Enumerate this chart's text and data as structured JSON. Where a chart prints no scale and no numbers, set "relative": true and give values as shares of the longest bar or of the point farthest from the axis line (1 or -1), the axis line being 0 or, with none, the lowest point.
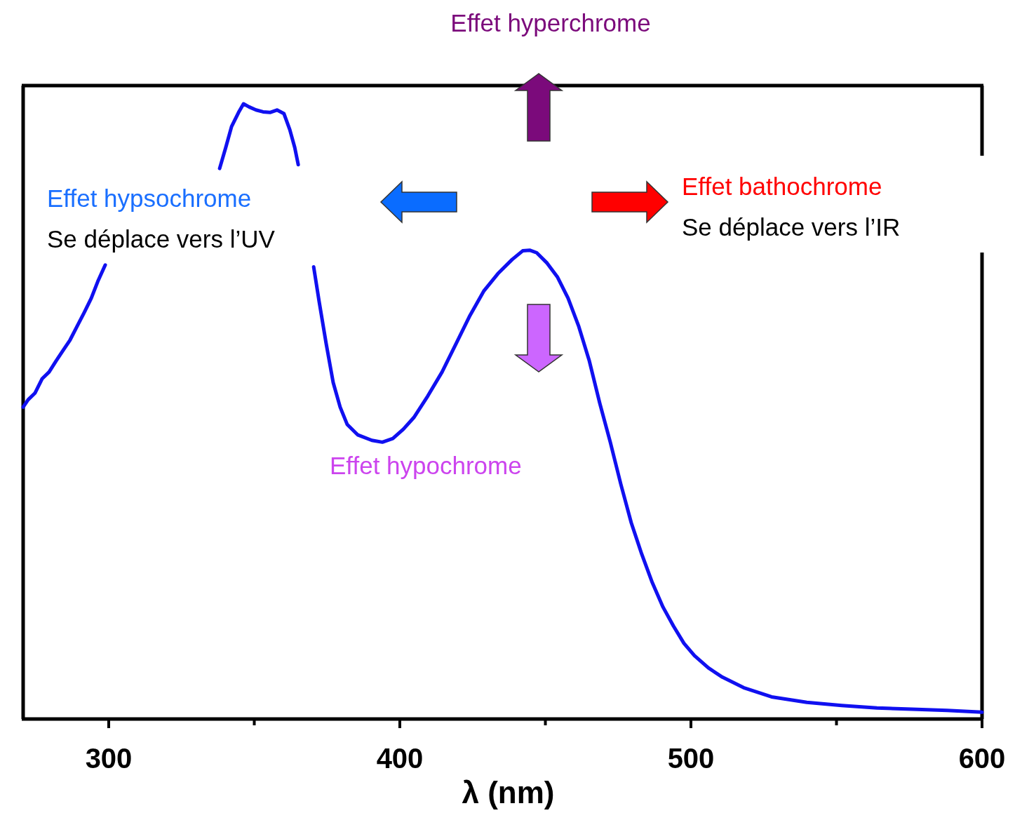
{
  "chart_data": {
    "type": "line",
    "xlabel": "λ (nm)",
    "relative": true,
    "xlim": [
      270.6,
      600
    ],
    "xticks": [
      300,
      {
        "value": 350,
        "label": null
      },
      400,
      {
        "value": 450,
        "label": null
      },
      500,
      {
        "value": 550,
        "label": null
      },
      600
    ],
    "x": [
      270.6,
      272.3,
      274.7,
      277.1,
      279.5,
      281.9,
      284.3,
      286.7,
      289.2,
      291.6,
      294.0,
      296.4,
      298.8,
      318,
      338.1,
      340.2,
      342.2,
      344.6,
      346.3,
      348.2,
      350.6,
      353.0,
      355.4,
      357.8,
      360.2,
      362.2,
      363.9,
      365.1,
      368,
      370.4,
      372.3,
      374.7,
      377.1,
      379.5,
      381.9,
      385.5,
      390.4,
      394.0,
      397.6,
      401.2,
      404.8,
      409.6,
      414.5,
      419.3,
      424.1,
      428.9,
      433.7,
      438.6,
      442.2,
      444.6,
      447.0,
      450.6,
      454.2,
      457.8,
      461.4,
      465.1,
      468.7,
      472.3,
      475.9,
      479.5,
      483.1,
      486.7,
      490.4,
      494.0,
      497.6,
      501.2,
      506.0,
      510.8,
      518.1,
      527.7,
      539.8,
      551.8,
      563.9,
      575.9,
      588.0,
      600.0
    ],
    "series": [
      {
        "color": "#1010f0",
        "values": [
          0.507,
          0.519,
          0.53,
          0.553,
          0.564,
          0.582,
          0.599,
          0.616,
          0.639,
          0.661,
          0.684,
          0.713,
          0.738,
          null,
          0.895,
          0.929,
          0.963,
          0.986,
          1.0,
          0.995,
          0.99,
          0.987,
          0.986,
          0.99,
          0.984,
          0.958,
          0.929,
          0.901,
          null,
          0.735,
          0.678,
          0.61,
          0.547,
          0.507,
          0.479,
          0.462,
          0.453,
          0.45,
          0.456,
          0.471,
          0.49,
          0.525,
          0.564,
          0.61,
          0.656,
          0.696,
          0.724,
          0.747,
          0.761,
          0.762,
          0.758,
          0.741,
          0.718,
          0.684,
          0.639,
          0.582,
          0.513,
          0.45,
          0.382,
          0.319,
          0.268,
          0.222,
          0.182,
          0.151,
          0.123,
          0.103,
          0.083,
          0.068,
          0.051,
          0.036,
          0.027,
          0.022,
          0.018,
          0.016,
          0.014,
          0.011
        ]
      }
    ],
    "annotations": [
      "Effet hyperchrome",
      "Effet hypsochrome",
      "Se déplace vers l’UV",
      "Effet bathochrome",
      "Se déplace vers l’IR",
      "Effet hypochrome"
    ],
    "marker": "none",
    "line_style": "solid"
  }
}
